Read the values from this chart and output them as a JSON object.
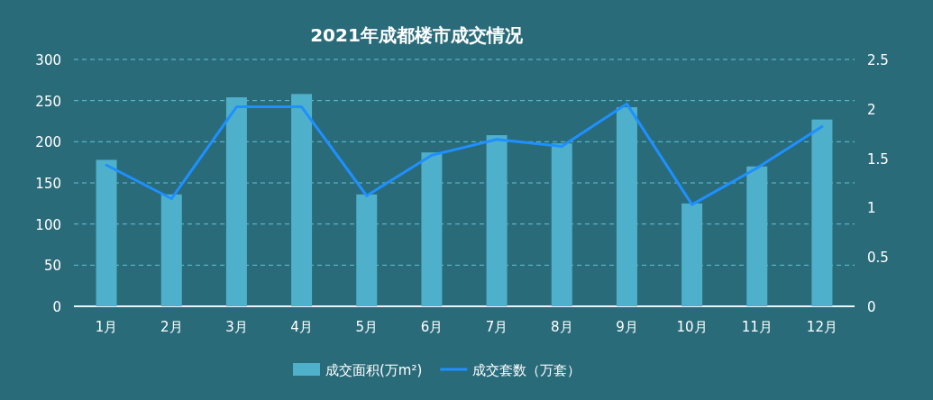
{
  "chart_data": {
    "type": "bar",
    "title": "2021年成都楼市成交情况",
    "categories": [
      "1月",
      "2月",
      "3月",
      "4月",
      "5月",
      "6月",
      "7月",
      "8月",
      "9月",
      "10月",
      "11月",
      "12月"
    ],
    "series": [
      {
        "name": "成交面积(万m²)",
        "color": "#4fb0cb",
        "values": [
          178,
          136,
          254,
          258,
          136,
          187,
          208,
          198,
          242,
          125,
          170,
          227
        ]
      },
      {
        "name": "成交套数（万套）",
        "type": "line",
        "axis": "y2",
        "color": "#1e90ff",
        "values": [
          1.43,
          1.09,
          2.02,
          2.02,
          1.12,
          1.53,
          1.69,
          1.62,
          2.05,
          1.03,
          1.4,
          1.82
        ]
      }
    ],
    "ylim": [
      0,
      300
    ],
    "yticks": [
      0,
      50,
      100,
      150,
      200,
      250,
      300
    ],
    "y2lim": [
      0,
      2.5
    ],
    "y2ticks": [
      0,
      {
        "value": 0.5,
        "label": "0.5"
      },
      1,
      {
        "value": 1.5,
        "label": "1.5"
      },
      2,
      {
        "value": 2.5,
        "label": "2.5"
      }
    ],
    "grid": "y",
    "legend": "bottom",
    "line_style": "solid",
    "marker": "none"
  }
}
